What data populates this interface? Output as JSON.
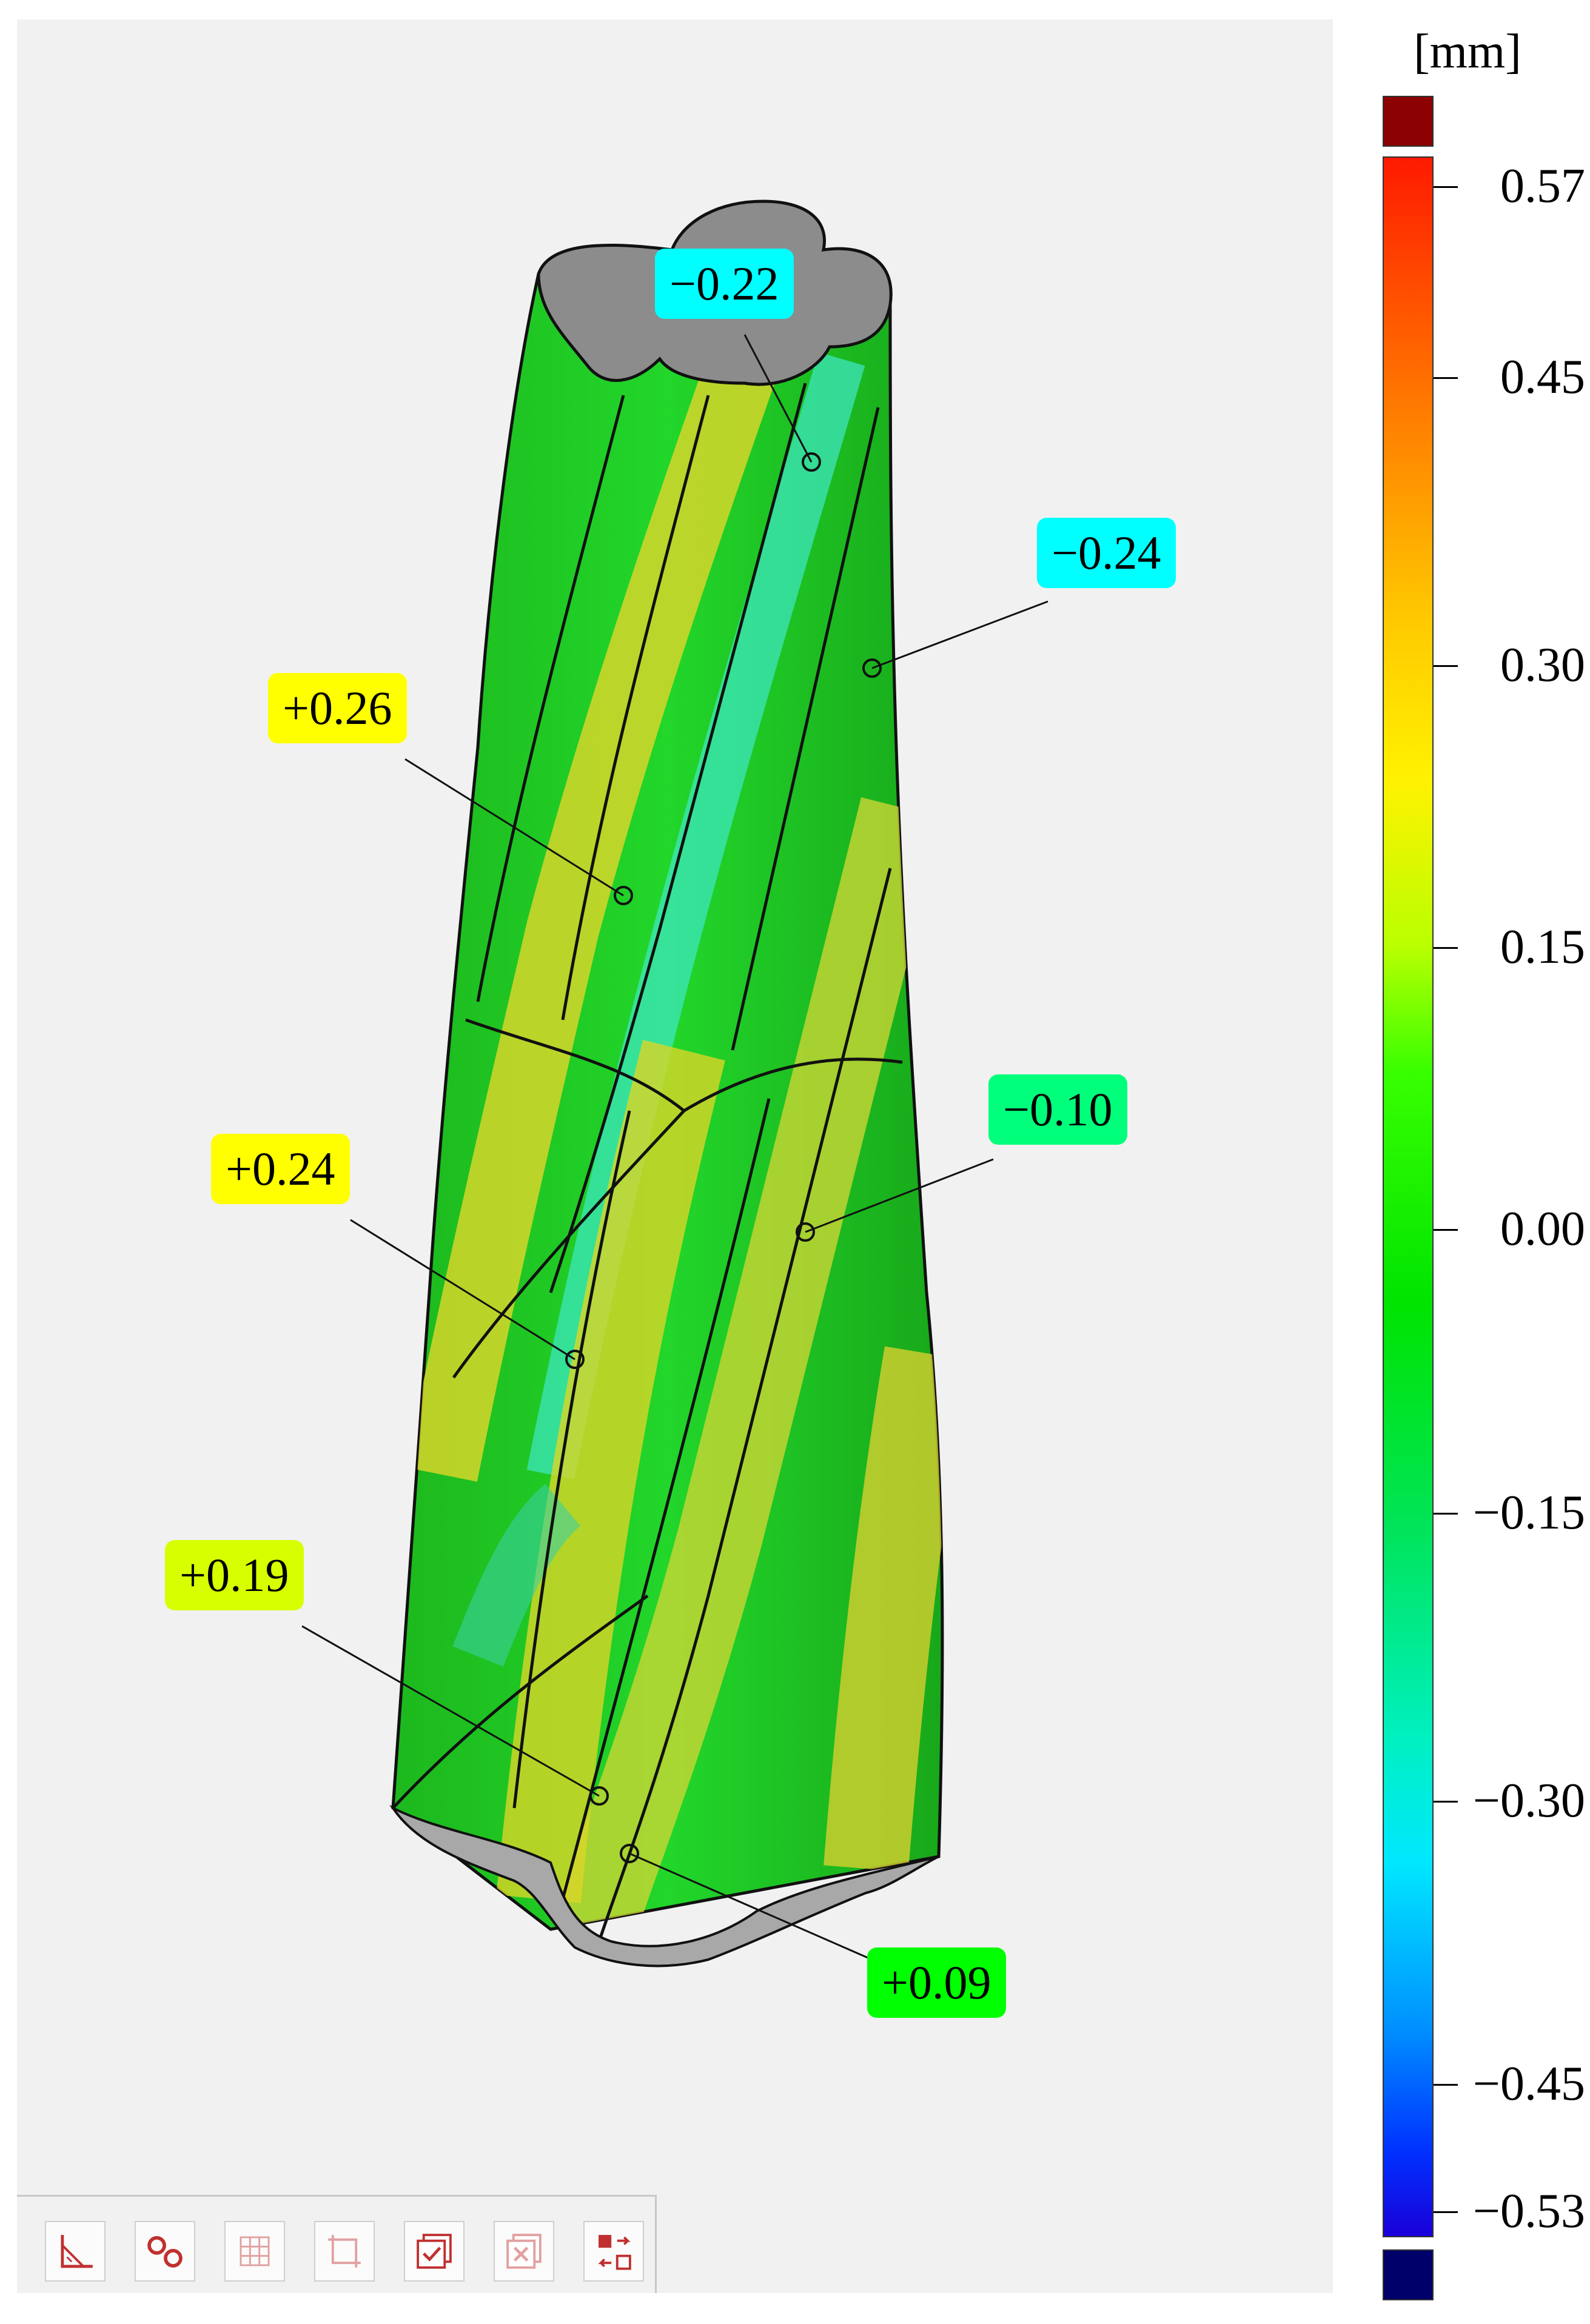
{
  "colorbar": {
    "unit": "[mm]",
    "ticks": [
      {
        "value": "0.57"
      },
      {
        "value": "0.45"
      },
      {
        "value": "0.30"
      },
      {
        "value": "0.15"
      },
      {
        "value": "0.00"
      },
      {
        "value": "−0.15"
      },
      {
        "value": "−0.30"
      },
      {
        "value": "−0.45"
      },
      {
        "value": "−0.53"
      }
    ],
    "over_color": "#8b0000",
    "under_color": "#00006b"
  },
  "callouts": [
    {
      "label": "−0.22",
      "color": "#00ffff"
    },
    {
      "label": "−0.24",
      "color": "#00ffff"
    },
    {
      "label": "+0.26",
      "color": "#ffff00"
    },
    {
      "label": "−0.10",
      "color": "#00ff7a"
    },
    {
      "label": "+0.24",
      "color": "#ffff00"
    },
    {
      "label": "+0.19",
      "color": "#d8ff00"
    },
    {
      "label": "+0.09",
      "color": "#00ff00"
    }
  ],
  "toolbar": {
    "buttons": [
      {
        "icon": "measure-angle-icon",
        "enabled": true
      },
      {
        "icon": "link-points-icon",
        "enabled": true
      },
      {
        "icon": "grid-select-icon",
        "enabled": false
      },
      {
        "icon": "crop-frame-icon",
        "enabled": false
      },
      {
        "icon": "check-layers-icon",
        "enabled": true
      },
      {
        "icon": "delete-layers-icon",
        "enabled": false
      },
      {
        "icon": "swap-objects-icon",
        "enabled": true
      }
    ]
  }
}
